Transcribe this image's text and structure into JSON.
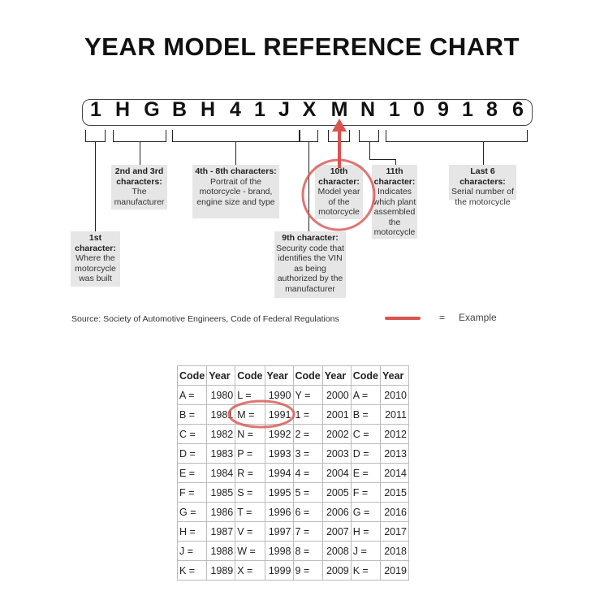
{
  "title": "YEAR MODEL REFERENCE CHART",
  "vin": [
    "1",
    "H",
    "G",
    "B",
    "H",
    "4",
    "1",
    "J",
    "X",
    "M",
    "N",
    "1",
    "0",
    "9",
    "1",
    "8",
    "6"
  ],
  "callouts": {
    "first": {
      "heading": "1st character:",
      "text": "Where the motorcycle was built"
    },
    "second_third": {
      "heading": "2nd and 3rd characters:",
      "text": "The manufacturer"
    },
    "fourth_eighth": {
      "heading": "4th - 8th characters:",
      "text": "Portrait of the motorcycle - brand, engine size and type"
    },
    "ninth": {
      "heading": "9th character:",
      "text": "Security code that identifies the VIN as being authorized by the manufacturer"
    },
    "tenth": {
      "heading": "10th character:",
      "text": "Model year of the motorcycle"
    },
    "eleventh": {
      "heading": "11th character:",
      "text": "Indicates which plant assembled the motorcycle"
    },
    "last_six": {
      "heading": "Last 6 characters:",
      "text": "Serial number of the motorcycle"
    }
  },
  "source": "Source:  Society of Automotive Engineers, Code of Federal Regulations",
  "legend": {
    "equals": "=",
    "label": "Example",
    "color": "#d9534f"
  },
  "table": {
    "headers": [
      "Code",
      "Year",
      "Code",
      "Year",
      "Code",
      "Year",
      "Code",
      "Year"
    ],
    "rows": [
      [
        "A =",
        "1980",
        "L =",
        "1990",
        "Y =",
        "2000",
        "A =",
        "2010"
      ],
      [
        "B =",
        "1981",
        "M =",
        "1991",
        "1 =",
        "2001",
        "B =",
        "2011"
      ],
      [
        "C =",
        "1982",
        "N =",
        "1992",
        "2 =",
        "2002",
        "C =",
        "2012"
      ],
      [
        "D =",
        "1983",
        "P =",
        "1993",
        "3 =",
        "2003",
        "D =",
        "2013"
      ],
      [
        "E =",
        "1984",
        "R =",
        "1994",
        "4 =",
        "2004",
        "E =",
        "2014"
      ],
      [
        "F =",
        "1985",
        "S =",
        "1995",
        "5 =",
        "2005",
        "F =",
        "2015"
      ],
      [
        "G =",
        "1986",
        "T =",
        "1996",
        "6 =",
        "2006",
        "G =",
        "2016"
      ],
      [
        "H =",
        "1987",
        "V =",
        "1997",
        "7 =",
        "2007",
        "H =",
        "2017"
      ],
      [
        "J =",
        "1988",
        "W =",
        "1998",
        "8 =",
        "2008",
        "J =",
        "2018"
      ],
      [
        "K =",
        "1989",
        "X =",
        "1999",
        "9 =",
        "2009",
        "K =",
        "2019"
      ]
    ]
  }
}
